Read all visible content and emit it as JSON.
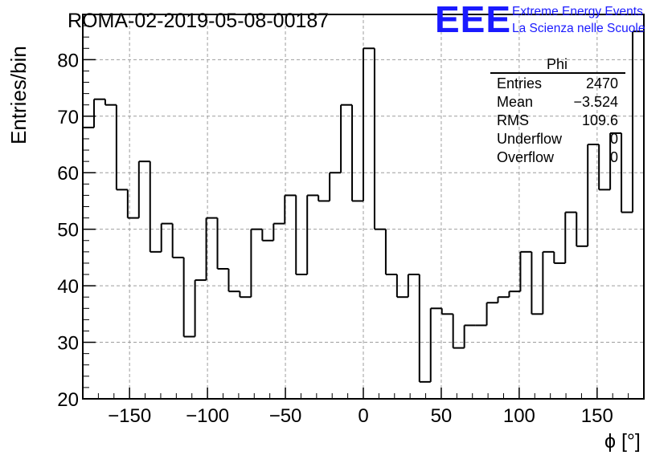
{
  "chart_data": {
    "type": "histogram",
    "title": "ROMA-02-2019-05-08-00187",
    "xlabel": "ϕ [°]",
    "ylabel": "Entries/bin",
    "xlim": [
      -180,
      180
    ],
    "ylim": [
      20,
      88
    ],
    "xticks": [
      -150,
      -100,
      -50,
      0,
      50,
      100,
      150
    ],
    "yticks": [
      20,
      30,
      40,
      50,
      60,
      70,
      80
    ],
    "grid": true,
    "bin_width": 7.2,
    "values": [
      68,
      73,
      72,
      57,
      52,
      62,
      46,
      51,
      45,
      31,
      41,
      52,
      43,
      39,
      38,
      50,
      48,
      51,
      56,
      42,
      56,
      55,
      60,
      72,
      55,
      82,
      50,
      42,
      38,
      42,
      23,
      36,
      35,
      29,
      33,
      33,
      37,
      38,
      39,
      46,
      35,
      46,
      44,
      53,
      47,
      65,
      57,
      67,
      53,
      85
    ],
    "series_name": "Phi",
    "stats": {
      "title": "Phi",
      "rows": [
        {
          "label": "Entries",
          "value": "2470"
        },
        {
          "label": "Mean",
          "value": "−3.524"
        },
        {
          "label": "RMS",
          "value": "109.6"
        },
        {
          "label": "Underflow",
          "value": "0"
        },
        {
          "label": "Overflow",
          "value": "0"
        }
      ]
    }
  },
  "logo": {
    "mark": "EEE",
    "line1": "Extreme Energy Events",
    "line2": "La Scienza nelle Scuole",
    "color": "#1a1aff"
  },
  "colors": {
    "line": "#000000",
    "grid": "#9e9e9e"
  }
}
